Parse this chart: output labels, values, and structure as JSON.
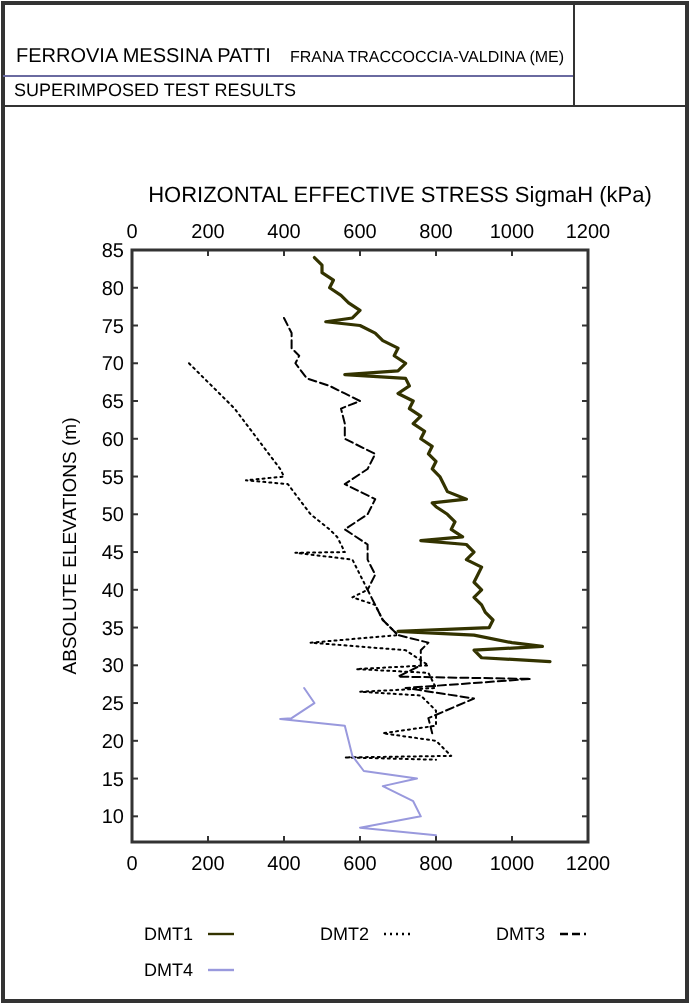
{
  "chart_data": {
    "type": "line",
    "title": "HORIZONTAL EFFECTIVE STRESS SigmaH (kPa)",
    "ylabel": "ABSOLUTE ELEVATIONS (m)",
    "annotations": [
      "FERROVIA MESSINA PATTI",
      "FRANA TRACCOCCIA-VALDINA (ME)",
      "SUPERIMPOSED TEST RESULTS"
    ],
    "xlim": [
      0,
      1200
    ],
    "xticks": [
      0,
      200,
      400,
      600,
      800,
      1000,
      1200
    ],
    "x2lim": [
      0,
      1200
    ],
    "x2ticks": [
      0,
      200,
      400,
      600,
      800,
      1000,
      1200
    ],
    "ylim": [
      6.6,
      85
    ],
    "yticks": [
      10,
      15,
      20,
      25,
      30,
      35,
      40,
      45,
      50,
      55,
      60,
      65,
      70,
      75,
      80,
      85
    ],
    "legend": "bottom",
    "marker": "none",
    "series": [
      {
        "name": "DMT1",
        "color": "#333300",
        "line_style": "solid",
        "x": [
          480,
          500,
          500,
          530,
          520,
          550,
          570,
          600,
          580,
          510,
          600,
          640,
          660,
          700,
          690,
          720,
          700,
          560,
          720,
          730,
          700,
          740,
          730,
          760,
          740,
          770,
          760,
          790,
          780,
          800,
          790,
          810,
          820,
          830,
          880,
          790,
          800,
          830,
          850,
          840,
          870,
          760,
          880,
          900,
          880,
          920,
          910,
          900,
          920,
          900,
          920,
          930,
          950,
          940,
          700,
          900,
          1000,
          1080,
          900,
          920,
          1100
        ],
        "values": [
          84,
          83,
          82,
          81,
          80,
          79,
          78,
          77,
          76,
          75.5,
          75,
          74,
          73,
          72,
          71,
          70,
          69,
          68.5,
          68,
          67,
          66,
          65,
          64,
          63,
          62,
          61,
          60,
          59,
          58,
          57,
          56,
          55,
          54,
          53,
          52,
          51.5,
          51,
          50,
          49,
          48,
          47,
          46.5,
          46,
          45,
          44,
          43,
          42,
          41,
          40,
          39,
          38,
          37,
          36,
          35,
          34.5,
          34,
          33,
          32.5,
          32,
          31,
          30.5
        ]
      },
      {
        "name": "DMT2",
        "color": "#000000",
        "line_style": "dotted",
        "x": [
          150,
          190,
          230,
          270,
          300,
          330,
          360,
          390,
          400,
          300,
          410,
          440,
          470,
          520,
          540,
          560,
          430,
          580,
          600,
          620,
          580,
          640,
          660,
          700,
          470,
          720,
          780,
          590,
          780,
          800,
          600,
          760,
          800,
          800,
          660,
          800,
          840,
          560,
          800
        ],
        "values": [
          70,
          68,
          66,
          64,
          62,
          60,
          58,
          56,
          55,
          54.5,
          54,
          52,
          50,
          48,
          47,
          45,
          44.9,
          44,
          42,
          40,
          39,
          38,
          36,
          34,
          33,
          32,
          30,
          29.5,
          29,
          27,
          26.5,
          26,
          24,
          22,
          21,
          20,
          18,
          17.8,
          17.5
        ]
      },
      {
        "name": "DMT3",
        "color": "#000000",
        "line_style": "dashed",
        "x": [
          400,
          420,
          420,
          440,
          430,
          460,
          520,
          560,
          600,
          550,
          560,
          560,
          640,
          620,
          560,
          640,
          620,
          560,
          620,
          620,
          640,
          620,
          640,
          660,
          700,
          780,
          760,
          760,
          700,
          1050,
          720,
          900,
          780,
          790
        ],
        "values": [
          76,
          74,
          72,
          71,
          70,
          68,
          67,
          66,
          65,
          64,
          62,
          60,
          58,
          56,
          54,
          52,
          50,
          48,
          46,
          44,
          42,
          40,
          38,
          36,
          34,
          33,
          32,
          30,
          28.5,
          28.2,
          27,
          25.6,
          23,
          21
        ]
      },
      {
        "name": "DMT4",
        "color": "#9999dd",
        "line_style": "solid",
        "x": [
          453,
          480,
          420,
          390,
          560,
          570,
          580,
          610,
          750,
          660,
          740,
          760,
          600,
          800
        ],
        "values": [
          27,
          25,
          23,
          22.9,
          22,
          20,
          18,
          16,
          15,
          14,
          12,
          10,
          8.5,
          7.5
        ]
      }
    ]
  }
}
